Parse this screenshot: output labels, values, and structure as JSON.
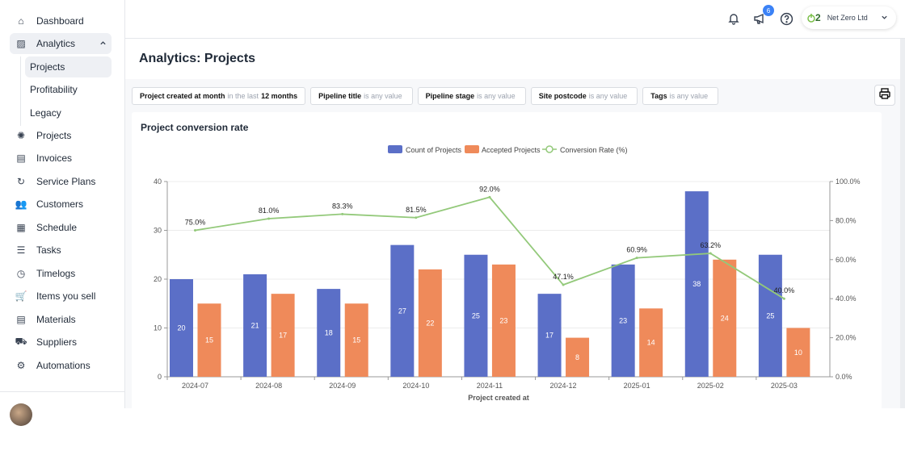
{
  "sidebar": {
    "items": [
      {
        "label": "Dashboard",
        "icon": "home-icon"
      },
      {
        "label": "Analytics",
        "icon": "chart-icon"
      },
      {
        "label": "Projects",
        "icon": "lightbulb-icon"
      },
      {
        "label": "Invoices",
        "icon": "document-icon"
      },
      {
        "label": "Service Plans",
        "icon": "refresh-icon"
      },
      {
        "label": "Customers",
        "icon": "users-icon"
      },
      {
        "label": "Schedule",
        "icon": "calendar-icon"
      },
      {
        "label": "Tasks",
        "icon": "list-icon"
      },
      {
        "label": "Timelogs",
        "icon": "stopwatch-icon"
      },
      {
        "label": "Items you sell",
        "icon": "cart-icon"
      },
      {
        "label": "Materials",
        "icon": "clipboard-icon"
      },
      {
        "label": "Suppliers",
        "icon": "truck-icon"
      },
      {
        "label": "Automations",
        "icon": "automation-icon"
      }
    ],
    "analytics_sub": [
      "Projects",
      "Profitability",
      "Legacy"
    ]
  },
  "header": {
    "notification_count": "6",
    "org_name": "Net Zero Ltd",
    "logo_text": "2"
  },
  "page": {
    "title": "Analytics: Projects"
  },
  "filters": [
    {
      "field": "Project created at month",
      "mid": "in the last",
      "value": "12 months"
    },
    {
      "field": "Pipeline title",
      "mid": "is any value",
      "value": ""
    },
    {
      "field": "Pipeline stage",
      "mid": "is any value",
      "value": ""
    },
    {
      "field": "Site postcode",
      "mid": "is any value",
      "value": ""
    },
    {
      "field": "Tags",
      "mid": "is any value",
      "value": ""
    }
  ],
  "colors": {
    "count": "#5b6fc7",
    "accepted": "#ef8a5a",
    "rate": "#93c97a"
  },
  "chart_data": {
    "type": "bar",
    "title": "Project conversion rate",
    "xlabel": "Project created at",
    "categories": [
      "2024-07",
      "2024-08",
      "2024-09",
      "2024-10",
      "2024-11",
      "2024-12",
      "2025-01",
      "2025-02",
      "2025-03"
    ],
    "series": [
      {
        "name": "Count of Projects",
        "type": "bar",
        "axis": "left",
        "values": [
          20,
          21,
          18,
          27,
          25,
          17,
          23,
          38,
          25
        ]
      },
      {
        "name": "Accepted Projects",
        "type": "bar",
        "axis": "left",
        "values": [
          15,
          17,
          15,
          22,
          23,
          8,
          14,
          24,
          10
        ]
      },
      {
        "name": "Conversion Rate (%)",
        "type": "line",
        "axis": "right",
        "values": [
          75.0,
          81.0,
          83.3,
          81.5,
          92.0,
          47.1,
          60.9,
          63.2,
          40.0
        ]
      }
    ],
    "ylim": [
      0,
      40
    ],
    "yticks": [
      0,
      10,
      20,
      30,
      40
    ],
    "y2lim": [
      0,
      100
    ],
    "y2ticks": [
      "0.0%",
      "20.0%",
      "40.0%",
      "60.0%",
      "80.0%",
      "100.0%"
    ],
    "legend": "top-center",
    "grid": true
  }
}
